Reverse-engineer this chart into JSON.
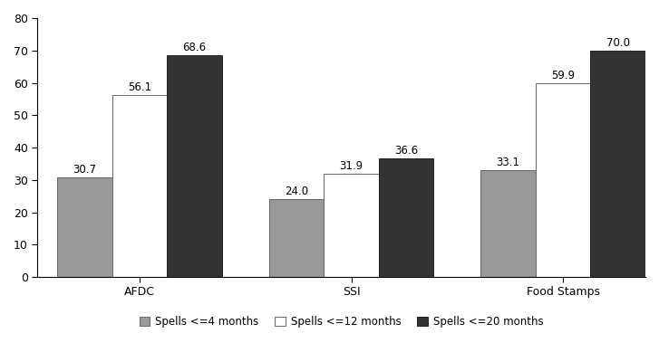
{
  "categories": [
    "AFDC",
    "SSI",
    "Food Stamps"
  ],
  "series": {
    "Spells <=4 months": [
      30.7,
      24.0,
      33.1
    ],
    "Spells <=12 months": [
      56.1,
      31.9,
      59.9
    ],
    "Spells <=20 months": [
      68.6,
      36.6,
      70.0
    ]
  },
  "bar_colors": {
    "Spells <=4 months": "#999999",
    "Spells <=12 months": "#ffffff",
    "Spells <=20 months": "#333333"
  },
  "bar_edge_colors": {
    "Spells <=4 months": "#666666",
    "Spells <=12 months": "#666666",
    "Spells <=20 months": "#222222"
  },
  "ylim": [
    0,
    80
  ],
  "yticks": [
    0,
    10,
    20,
    30,
    40,
    50,
    60,
    70,
    80
  ],
  "bar_width": 0.28,
  "label_fontsize": 8.5,
  "tick_fontsize": 9,
  "legend_fontsize": 8.5,
  "background_color": "#ffffff",
  "group_positions": [
    0.42,
    1.5,
    2.58
  ]
}
